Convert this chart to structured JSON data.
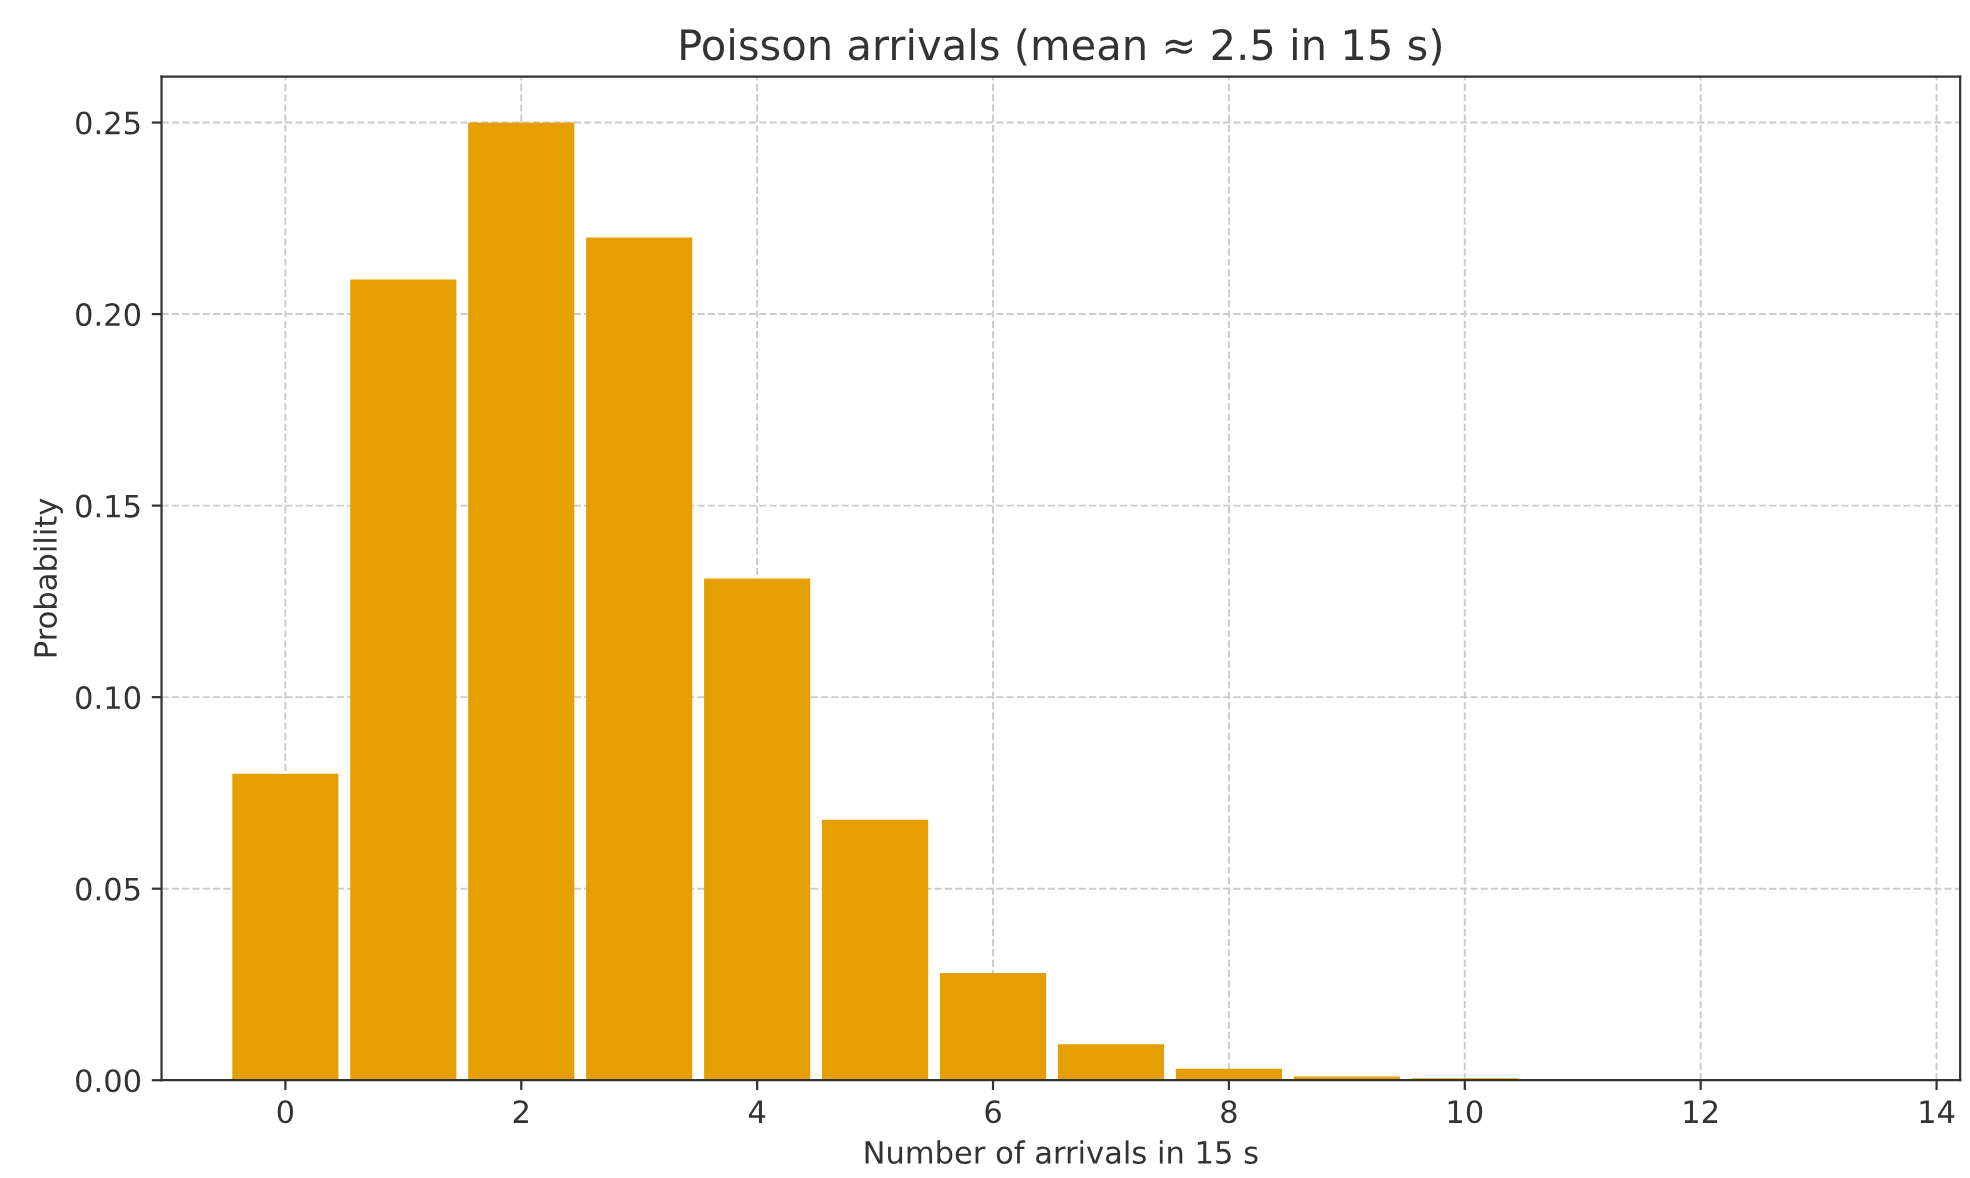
{
  "chart_data": {
    "type": "bar",
    "title": "Poisson arrivals (mean ≈ 2.5 in 15 s)",
    "xlabel": "Number of arrivals in 15 s",
    "ylabel": "Probability",
    "x": [
      0,
      1,
      2,
      3,
      4,
      5,
      6,
      7,
      8,
      9,
      10
    ],
    "values": [
      0.08,
      0.209,
      0.25,
      0.22,
      0.131,
      0.068,
      0.028,
      0.0094,
      0.003,
      0.001,
      0.0005
    ],
    "color": "#e69f00",
    "xlim": [
      -1.05,
      14.2
    ],
    "xticks": [
      0,
      2,
      4,
      6,
      8,
      10,
      12,
      14
    ],
    "ylim": [
      0,
      0.262
    ],
    "yticks": [
      {
        "value": 0,
        "label": "0.00"
      },
      {
        "value": 0.05,
        "label": "0.05"
      },
      {
        "value": 0.1,
        "label": "0.10"
      },
      {
        "value": 0.15,
        "label": "0.15"
      },
      {
        "value": 0.2,
        "label": "0.20"
      },
      {
        "value": 0.25,
        "label": "0.25"
      }
    ],
    "grid": true
  }
}
